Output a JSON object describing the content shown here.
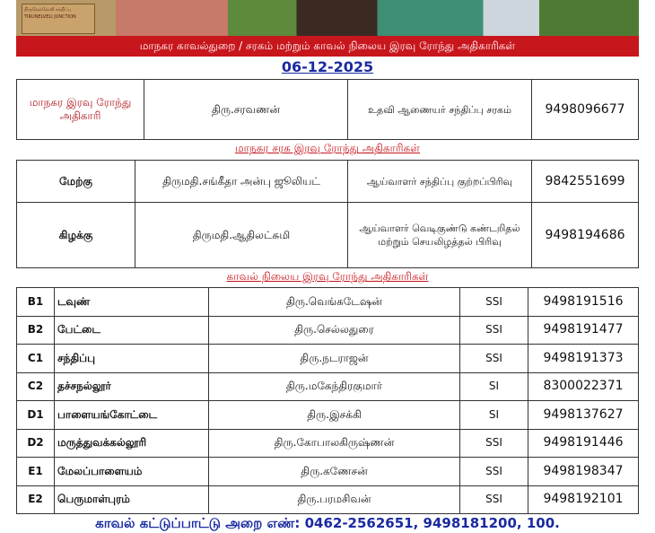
{
  "banner": {
    "logo_text": "திருநெல்வேலி சந்திப்பு TIRUNELVELI JUNCTION"
  },
  "header": {
    "title": "மாநகர காவல்துறை / சரகம் மற்றும் காவல் நிலைய இரவு ரோந்து அதிகாரிகள்",
    "date": "06-12-2025"
  },
  "city_officer": {
    "role": "மாநகர இரவு ரோந்து அதிகாரி",
    "name": "திரு.சரவணன்",
    "designation": "உதவி ஆணையர் சந்திப்பு சரகம்",
    "phone": "9498096677"
  },
  "range_section": {
    "heading": "மாநகர சரக இரவு ரோந்து அதிகாரிகள்",
    "rows": [
      {
        "range": "மேற்கு",
        "name": "திருமதி.சங்கீதா அன்பு ஜூலியட்",
        "designation": "ஆய்வாளர் சந்திப்பு குற்றப்பிரிவு",
        "phone": "9842551699"
      },
      {
        "range": "கிழக்கு",
        "name": "திருமதி.ஆதிலட்சுமி",
        "designation": "ஆய்வாளர் வெடிகுண்டு கண்டறிதல் மற்றும் செயலிழத்தல் பிரிவு",
        "phone": "9498194686"
      }
    ]
  },
  "station_section": {
    "heading": "காவல் நிலைய இரவு ரோந்து அதிகாரிகள்",
    "rows": [
      {
        "code": "B1",
        "station": "டவுண்",
        "name": "திரு.வெங்கடேஷன்",
        "rank": "SSI",
        "phone": "9498191516"
      },
      {
        "code": "B2",
        "station": "பேட்டை",
        "name": "திரு.செல்லதுரை",
        "rank": "SSI",
        "phone": "9498191477"
      },
      {
        "code": "C1",
        "station": "சந்திப்பு",
        "name": "திரு.நடராஜன்",
        "rank": "SSI",
        "phone": "9498191373"
      },
      {
        "code": "C2",
        "station": "தச்சநல்லூர்",
        "name": "திரு.மகேந்திரகுமார்",
        "rank": "SI",
        "phone": "8300022371"
      },
      {
        "code": "D1",
        "station": "பாளையங்கோட்டை",
        "name": "திரு.இசக்கி",
        "rank": "SI",
        "phone": "9498137627"
      },
      {
        "code": "D2",
        "station": "மருத்துவக்கல்லூரி",
        "name": "திரு.கோபாலகிருஷ்ணன்",
        "rank": "SSI",
        "phone": "9498191446"
      },
      {
        "code": "E1",
        "station": "மேலப்பாளையம்",
        "name": "திரு.கணேசன்",
        "rank": "SSI",
        "phone": "9498198347"
      },
      {
        "code": "E2",
        "station": "பெருமாள்புரம்",
        "name": "திரு.பரமசிவன்",
        "rank": "SSI",
        "phone": "9498192101"
      }
    ]
  },
  "footer": {
    "text": "காவல் கட்டுப்பாட்டு அறை எண்: 0462-2562651, 9498181200, 100."
  }
}
